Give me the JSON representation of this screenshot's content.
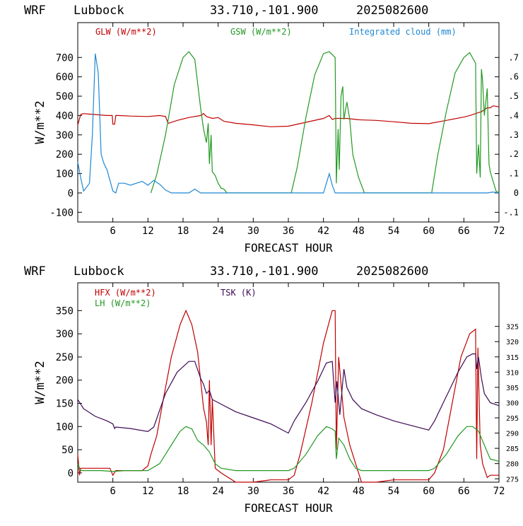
{
  "chart_data": [
    {
      "type": "line",
      "header": {
        "model": "WRF",
        "location": "Lubbock",
        "coords": "33.710,-101.900",
        "init": "2025082600"
      },
      "xlabel": "FORECAST HOUR",
      "ylabel": "W/m**2",
      "xlim": [
        0,
        72
      ],
      "x_ticks": [
        6,
        12,
        18,
        24,
        30,
        36,
        42,
        48,
        54,
        60,
        66,
        72
      ],
      "ylim": [
        -150,
        880
      ],
      "y_ticks": [
        -100,
        0,
        100,
        200,
        300,
        400,
        500,
        600,
        700
      ],
      "y2lim": [
        -0.15,
        0.88
      ],
      "y2_ticks": [
        "-.1",
        "0",
        ".1",
        ".2",
        ".3",
        ".4",
        ".5",
        ".6",
        ".7"
      ],
      "grid": false,
      "legend_position": "top",
      "series": [
        {
          "name": "GLW (W/m**2)",
          "color": "#c00000",
          "axis": "left",
          "x": [
            0,
            0.5,
            1,
            3,
            5,
            5.9,
            6,
            6.3,
            6.5,
            7,
            9,
            12,
            14,
            15,
            15.3,
            15.5,
            17,
            19,
            21,
            21.5,
            22,
            23,
            24,
            25,
            27,
            30,
            33,
            36,
            39,
            42,
            43,
            43.5,
            44,
            46,
            48,
            51,
            54,
            57,
            60,
            63,
            66,
            67,
            69,
            70,
            70.5,
            71,
            72
          ],
          "values": [
            350,
            405,
            410,
            405,
            400,
            400,
            355,
            355,
            400,
            400,
            397,
            395,
            400,
            395,
            370,
            360,
            375,
            390,
            400,
            410,
            395,
            385,
            390,
            370,
            360,
            352,
            342,
            345,
            365,
            385,
            400,
            380,
            385,
            385,
            378,
            375,
            368,
            360,
            358,
            375,
            392,
            400,
            420,
            440,
            440,
            450,
            445
          ]
        },
        {
          "name": "GSW (W/m**2)",
          "color": "#229922",
          "axis": "left",
          "x": [
            12.5,
            13.5,
            15,
            16.5,
            18,
            19,
            20,
            21,
            21.5,
            22,
            22.3,
            22.5,
            22.8,
            23,
            23.5,
            24,
            24.5,
            25,
            25.5,
            36.5,
            37.5,
            39,
            40.5,
            42,
            43,
            44,
            44.2,
            44.5,
            44.7,
            45,
            45.3,
            45.5,
            46,
            46.5,
            47,
            48,
            49,
            60.5,
            61.5,
            63,
            64.5,
            66,
            67,
            68,
            68.2,
            68.5,
            68.8,
            69,
            69.2,
            69.5,
            70,
            70.3,
            70.5,
            71,
            71.5,
            72
          ],
          "values": [
            0,
            95,
            300,
            560,
            700,
            730,
            690,
            440,
            330,
            260,
            360,
            150,
            300,
            110,
            90,
            50,
            25,
            20,
            0,
            0,
            130,
            390,
            610,
            720,
            730,
            700,
            50,
            330,
            120,
            500,
            550,
            380,
            470,
            380,
            200,
            80,
            0,
            0,
            190,
            420,
            620,
            700,
            725,
            670,
            100,
            250,
            80,
            640,
            580,
            400,
            540,
            150,
            110,
            60,
            10,
            0
          ]
        },
        {
          "name": "Integrated cloud (mm)",
          "color": "#1f88d2",
          "axis": "right",
          "x": [
            0,
            0.5,
            1,
            2,
            2.5,
            3,
            3.5,
            4,
            4.5,
            5,
            6,
            6.5,
            7,
            8,
            9,
            10,
            11,
            12,
            13,
            14,
            15,
            16,
            19,
            20,
            21,
            22,
            30,
            40,
            42,
            43,
            43.5,
            44,
            48,
            60,
            70,
            71,
            72
          ],
          "values": [
            0.16,
            0.08,
            0.01,
            0.05,
            0.3,
            0.72,
            0.62,
            0.2,
            0.15,
            0.12,
            0.01,
            0.0,
            0.05,
            0.05,
            0.04,
            0.05,
            0.06,
            0.04,
            0.065,
            0.045,
            0.015,
            0.0,
            0.0,
            0.02,
            0.0,
            0.0,
            0.0,
            0.0,
            0.0,
            0.1,
            0.04,
            0.0,
            0.0,
            0.0,
            0.0,
            0.005,
            0.0
          ]
        }
      ]
    },
    {
      "type": "line",
      "header": {
        "model": "WRF",
        "location": "Lubbock",
        "coords": "33.710,-101.900",
        "init": "2025082600"
      },
      "xlabel": "FORECAST HOUR",
      "ylabel": "W/m**2",
      "xlim": [
        0,
        72
      ],
      "x_ticks": [
        6,
        12,
        18,
        24,
        30,
        36,
        42,
        48,
        54,
        60,
        66,
        72
      ],
      "ylim": [
        -20,
        410
      ],
      "y_ticks": [
        0,
        50,
        100,
        150,
        200,
        250,
        300,
        350
      ],
      "y2lim": [
        273.9,
        339.3
      ],
      "y2_ticks": [
        "275",
        "280",
        "285",
        "290",
        "295",
        "300",
        "305",
        "310",
        "315",
        "320",
        "325"
      ],
      "grid": false,
      "legend_position": "top-left",
      "series": [
        {
          "name": "HFX (W/m**2)",
          "color": "#c00000",
          "axis": "left",
          "x": [
            0,
            0.3,
            0.5,
            3,
            5.5,
            6,
            6.5,
            8,
            11,
            12,
            12.5,
            13.5,
            14.5,
            16,
            17.5,
            18.5,
            19.5,
            20.5,
            21.5,
            22,
            22.3,
            22.5,
            22.8,
            23,
            23.5,
            24.5,
            27,
            30,
            33,
            36,
            37,
            38,
            40,
            42,
            43.5,
            44,
            44.2,
            44.6,
            45.5,
            46.5,
            47.5,
            48.5,
            51,
            54,
            57,
            60,
            61,
            62.5,
            64,
            65.5,
            67,
            68,
            68.2,
            68.4,
            68.6,
            68.8,
            69.2,
            70,
            70.5,
            72
          ],
          "values": [
            40,
            -5,
            10,
            10,
            10,
            -5,
            5,
            5,
            5,
            15,
            40,
            80,
            150,
            250,
            320,
            350,
            320,
            260,
            140,
            110,
            60,
            200,
            60,
            160,
            10,
            0,
            -20,
            -20,
            -15,
            -15,
            -5,
            40,
            150,
            280,
            350,
            350,
            50,
            250,
            120,
            60,
            20,
            -20,
            -20,
            -15,
            -15,
            -15,
            0,
            50,
            150,
            250,
            300,
            310,
            30,
            270,
            160,
            60,
            20,
            -10,
            -5,
            -5
          ]
        },
        {
          "name": "LH (W/m**2)",
          "color": "#229922",
          "axis": "left",
          "x": [
            0,
            0.5,
            2,
            4,
            6,
            8,
            10,
            12,
            14,
            16,
            17.5,
            18.5,
            19.5,
            20.5,
            21.5,
            22.5,
            23.5,
            24.5,
            27,
            30,
            33,
            36,
            37,
            39,
            41,
            42.5,
            43.5,
            44,
            44.2,
            44.6,
            45.5,
            46.5,
            47.5,
            48.5,
            51,
            54,
            57,
            60,
            61,
            63,
            65,
            66.5,
            67.5,
            68.5,
            69.5,
            70.5,
            72
          ],
          "values": [
            20,
            5,
            5,
            5,
            3,
            5,
            5,
            5,
            20,
            60,
            90,
            100,
            95,
            70,
            60,
            45,
            20,
            10,
            5,
            5,
            5,
            5,
            10,
            40,
            80,
            100,
            95,
            90,
            30,
            75,
            60,
            30,
            10,
            5,
            5,
            5,
            5,
            5,
            10,
            40,
            80,
            100,
            100,
            90,
            60,
            30,
            25
          ]
        },
        {
          "name": "TSK (K)",
          "color": "#3d0a55",
          "axis": "right",
          "x": [
            0,
            1,
            3,
            5,
            6,
            6.3,
            6.5,
            9,
            12,
            13,
            15,
            17,
            19,
            20,
            21,
            21.5,
            22,
            22.5,
            23,
            24,
            27,
            30,
            33,
            36,
            37,
            39,
            41,
            42.5,
            43.5,
            44,
            44.3,
            44.8,
            45.5,
            46,
            47,
            48.5,
            51,
            54,
            57,
            60,
            61,
            63,
            65,
            66.5,
            67.5,
            68,
            68.2,
            68.5,
            69,
            69.5,
            70.5,
            72
          ],
          "values": [
            301,
            298,
            295.5,
            294,
            293,
            291.5,
            292,
            291.5,
            290.5,
            292,
            303,
            310,
            313.5,
            313.5,
            308,
            306,
            303,
            304,
            301,
            300,
            297,
            295,
            293,
            290,
            294,
            300,
            307,
            313,
            313.5,
            300,
            307,
            296,
            311,
            305,
            301,
            298,
            296,
            294,
            292.5,
            291,
            294,
            302,
            310,
            315,
            316,
            316,
            311,
            315,
            308,
            303,
            300,
            299
          ]
        }
      ]
    }
  ]
}
